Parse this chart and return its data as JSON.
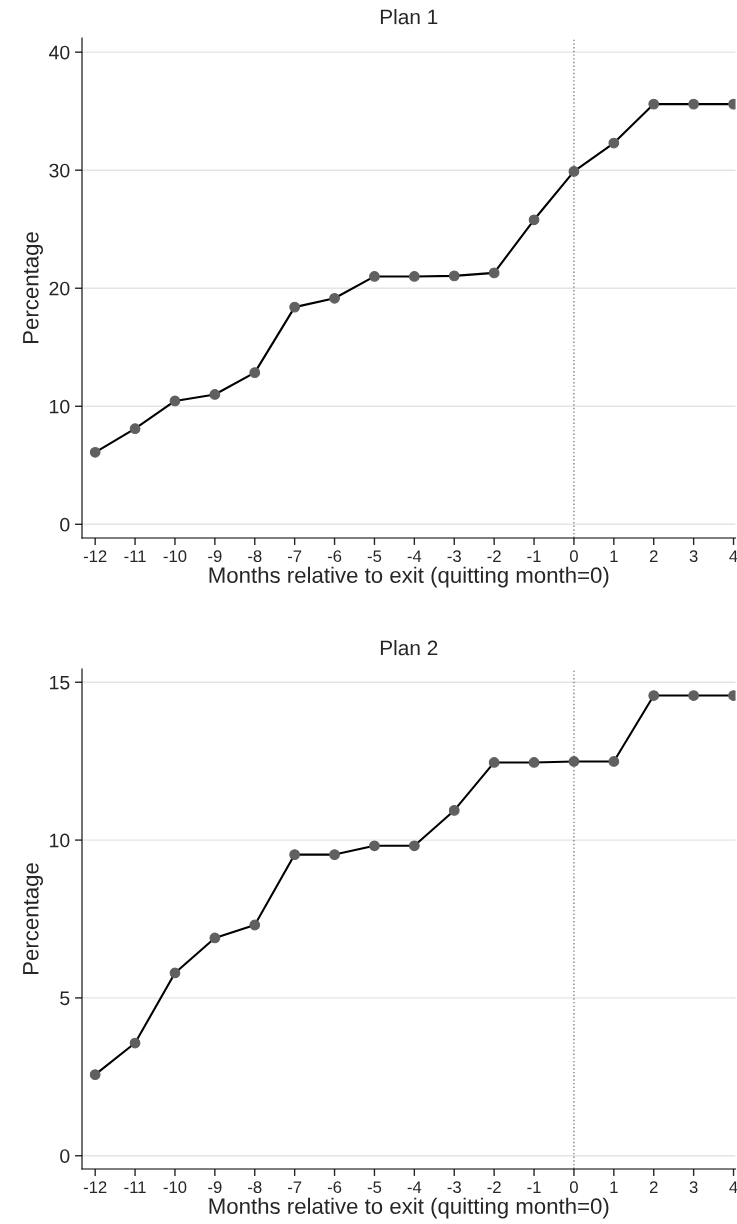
{
  "chart_data": [
    {
      "type": "line",
      "title": "Plan 1",
      "xlabel": "Months relative to exit (quitting month=0)",
      "ylabel": "Percentage",
      "x": [
        -12,
        -11,
        -10,
        -9,
        -8,
        -7,
        -6,
        -5,
        -4,
        -3,
        -2,
        -1,
        0,
        1,
        2,
        3,
        4
      ],
      "series": [
        {
          "color": "#000000",
          "values": [
            6.1,
            8.1,
            10.45,
            11.0,
            12.85,
            18.4,
            19.15,
            21.0,
            21.0,
            21.05,
            21.3,
            25.8,
            29.9,
            32.3,
            35.6,
            35.6,
            35.6
          ]
        }
      ],
      "xlim": [
        -12.33,
        4.05
      ],
      "xticks": [
        -12,
        -11,
        -10,
        -9,
        -8,
        -7,
        -6,
        -5,
        -4,
        -3,
        -2,
        -1,
        0,
        1,
        2,
        3,
        4
      ],
      "ylim": [
        -1.16,
        41.2
      ],
      "yticks": [
        0,
        10,
        20,
        30,
        40
      ],
      "ref_lines": [
        {
          "axis": "x",
          "value": 0,
          "color": "#808080",
          "line_style": "dotted"
        }
      ],
      "grid": "y",
      "marker": "circle",
      "line_style": "solid"
    },
    {
      "type": "line",
      "title": "Plan 2",
      "xlabel": "Months relative to exit (quitting month=0)",
      "ylabel": "Percentage",
      "x": [
        -12,
        -11,
        -10,
        -9,
        -8,
        -7,
        -6,
        -5,
        -4,
        -3,
        -2,
        -1,
        0,
        1,
        2,
        3,
        4
      ],
      "series": [
        {
          "color": "#000000",
          "values": [
            2.57,
            3.57,
            5.79,
            6.9,
            7.31,
            9.54,
            9.54,
            9.82,
            9.82,
            10.94,
            12.46,
            12.46,
            12.49,
            12.49,
            14.58,
            14.58,
            14.58
          ]
        }
      ],
      "xlim": [
        -12.33,
        4.05
      ],
      "xticks": [
        -12,
        -11,
        -10,
        -9,
        -8,
        -7,
        -6,
        -5,
        -4,
        -3,
        -2,
        -1,
        0,
        1,
        2,
        3,
        4
      ],
      "ylim": [
        -0.42,
        15.42
      ],
      "yticks": [
        0,
        5,
        10,
        15
      ],
      "ref_lines": [
        {
          "axis": "x",
          "value": 0,
          "color": "#808080",
          "line_style": "dotted"
        }
      ],
      "grid": "y",
      "marker": "circle",
      "line_style": "solid"
    }
  ]
}
